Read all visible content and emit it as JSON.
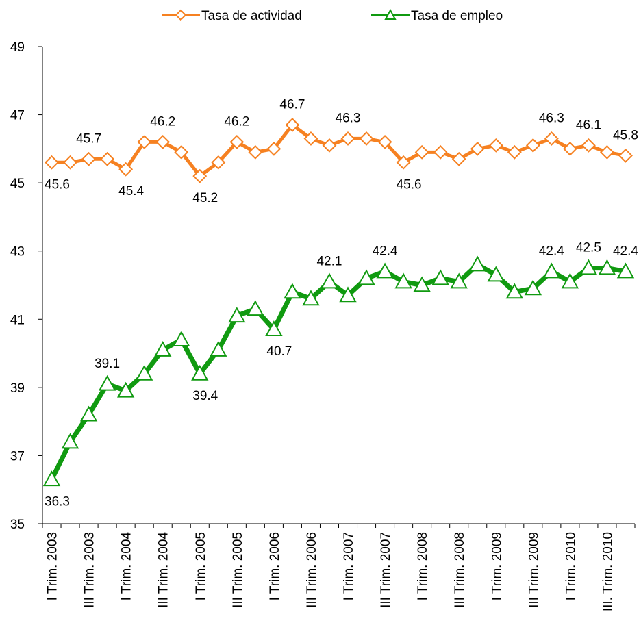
{
  "chart_data": {
    "type": "line",
    "categories": [
      "I Trim. 2003",
      null,
      "III Trim. 2003",
      null,
      "I Trim. 2004",
      null,
      "III Trim. 2004",
      null,
      "I Trim. 2005",
      null,
      "III Trim. 2005",
      null,
      "I Trim. 2006",
      null,
      "III Trim. 2006",
      null,
      "I Trim. 2007",
      null,
      "III Trim. 2007",
      null,
      "I Trim. 2008",
      null,
      "III Trim. 2008",
      null,
      "I Trim. 2009",
      null,
      "III Trim. 2009",
      null,
      "I Trim. 2010",
      null,
      "III. Trim. 2010",
      null
    ],
    "series": [
      {
        "name": "Tasa de actividad",
        "color": "#f68121",
        "marker": "diamond",
        "values": [
          45.6,
          45.6,
          45.7,
          45.7,
          45.4,
          46.2,
          46.2,
          45.9,
          45.2,
          45.6,
          46.2,
          45.9,
          46.0,
          46.7,
          46.3,
          46.1,
          46.3,
          46.3,
          46.2,
          45.6,
          45.9,
          45.9,
          45.7,
          46.0,
          46.1,
          45.9,
          46.1,
          46.3,
          46.0,
          46.1,
          45.9,
          45.8
        ],
        "value_labels": [
          "45.6",
          null,
          "45.7",
          null,
          "45.4",
          null,
          "46.2",
          null,
          "45.2",
          null,
          "46.2",
          null,
          null,
          "46.7",
          null,
          null,
          "46.3",
          null,
          null,
          "45.6",
          null,
          null,
          null,
          null,
          null,
          null,
          null,
          "46.3",
          null,
          "46.1",
          null,
          "45.8"
        ]
      },
      {
        "name": "Tasa de empleo",
        "color": "#109a10",
        "marker": "triangle",
        "values": [
          36.3,
          37.4,
          38.2,
          39.1,
          38.9,
          39.4,
          40.1,
          40.4,
          39.4,
          40.1,
          41.1,
          41.3,
          40.7,
          41.8,
          41.6,
          42.1,
          41.7,
          42.2,
          42.4,
          42.1,
          42.0,
          42.2,
          42.1,
          42.6,
          42.3,
          41.8,
          41.9,
          42.4,
          42.1,
          42.5,
          42.5,
          42.4
        ],
        "value_labels": [
          "36.3",
          null,
          null,
          "39.1",
          null,
          null,
          null,
          null,
          "39.4",
          null,
          null,
          null,
          "40.7",
          null,
          null,
          "42.1",
          null,
          null,
          "42.4",
          null,
          null,
          null,
          null,
          null,
          null,
          null,
          null,
          "42.4",
          null,
          "42.5",
          null,
          "42.4"
        ]
      }
    ],
    "ylim": [
      35,
      49
    ],
    "yticks": [
      35,
      37,
      39,
      41,
      43,
      45,
      47,
      49
    ],
    "legend": "top"
  }
}
